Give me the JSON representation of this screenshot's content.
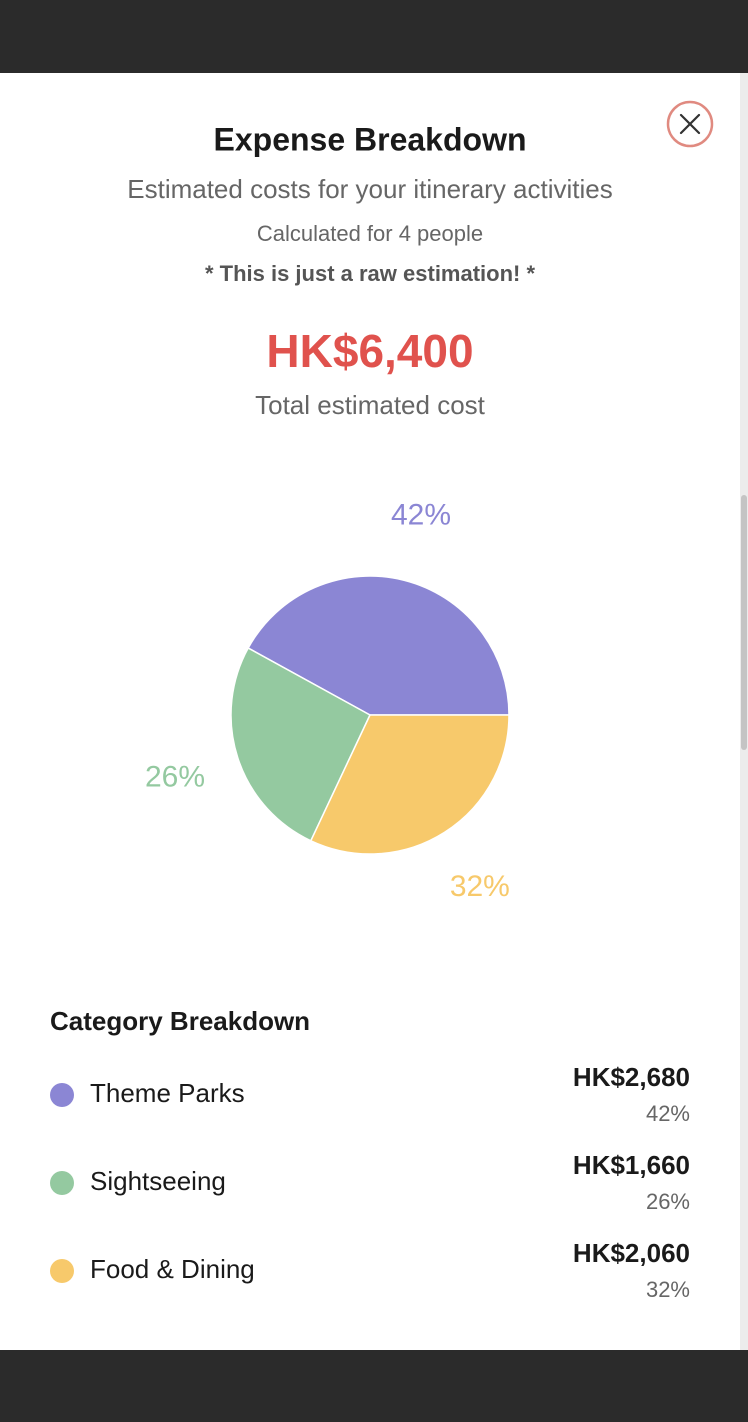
{
  "header": {
    "title": "Expense Breakdown",
    "subtitle": "Estimated costs for your itinerary activities",
    "people": "Calculated for 4 people",
    "note": "* This is just a raw estimation! *",
    "total": "HK$6,400",
    "total_label": "Total estimated cost"
  },
  "chart_data": {
    "type": "pie",
    "categories": [
      "Theme Parks",
      "Sightseeing",
      "Food & Dining"
    ],
    "values": [
      42,
      26,
      32
    ],
    "value_labels": [
      "42%",
      "26%",
      "32%"
    ],
    "colors": [
      "#8b86d4",
      "#94c9a0",
      "#f7c96b"
    ]
  },
  "breakdown": {
    "title": "Category Breakdown",
    "rows": [
      {
        "amount": "HK$2,680",
        "percent": "42%"
      },
      {
        "amount": "HK$1,660",
        "percent": "26%"
      },
      {
        "amount": "HK$2,060",
        "percent": "32%"
      }
    ]
  }
}
